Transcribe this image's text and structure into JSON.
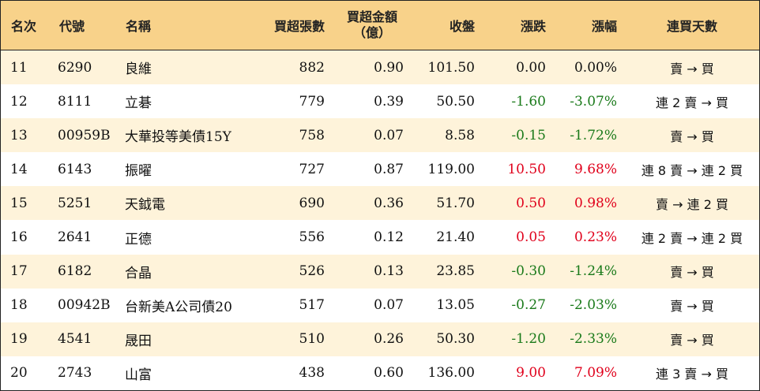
{
  "columns": {
    "rank": "名次",
    "code": "代號",
    "name": "名稱",
    "net_buy_lots": "買超張數",
    "net_buy_amount_line1": "買超金額",
    "net_buy_amount_line2": "（億）",
    "close": "收盤",
    "change": "漲跌",
    "change_pct": "漲幅",
    "streak": "連買天數"
  },
  "colors": {
    "header_bg": "#f8d28a",
    "odd_row_bg": "#fef3da",
    "up": "#e0001b",
    "down": "#1a7a1a"
  },
  "rows": [
    {
      "rank": "11",
      "code": "6290",
      "name": "良維",
      "lots": "882",
      "amount": "0.90",
      "close": "101.50",
      "change": "0.00",
      "pct": "0.00%",
      "streak": "賣 → 買",
      "dir": "flat"
    },
    {
      "rank": "12",
      "code": "8111",
      "name": "立碁",
      "lots": "779",
      "amount": "0.39",
      "close": "50.50",
      "change": "-1.60",
      "pct": "-3.07%",
      "streak": "連 2 賣 → 買",
      "dir": "down"
    },
    {
      "rank": "13",
      "code": "00959B",
      "name": "大華投等美債15Y",
      "lots": "758",
      "amount": "0.07",
      "close": "8.58",
      "change": "-0.15",
      "pct": "-1.72%",
      "streak": "賣 → 買",
      "dir": "down"
    },
    {
      "rank": "14",
      "code": "6143",
      "name": "振曜",
      "lots": "727",
      "amount": "0.87",
      "close": "119.00",
      "change": "10.50",
      "pct": "9.68%",
      "streak": "連 8 賣 → 連 2 買",
      "dir": "up"
    },
    {
      "rank": "15",
      "code": "5251",
      "name": "天鉞電",
      "lots": "690",
      "amount": "0.36",
      "close": "51.70",
      "change": "0.50",
      "pct": "0.98%",
      "streak": "賣 → 連 2 買",
      "dir": "up"
    },
    {
      "rank": "16",
      "code": "2641",
      "name": "正德",
      "lots": "556",
      "amount": "0.12",
      "close": "21.40",
      "change": "0.05",
      "pct": "0.23%",
      "streak": "連 2 賣 → 連 2 買",
      "dir": "up"
    },
    {
      "rank": "17",
      "code": "6182",
      "name": "合晶",
      "lots": "526",
      "amount": "0.13",
      "close": "23.85",
      "change": "-0.30",
      "pct": "-1.24%",
      "streak": "賣 → 買",
      "dir": "down"
    },
    {
      "rank": "18",
      "code": "00942B",
      "name": "台新美A公司債20",
      "lots": "517",
      "amount": "0.07",
      "close": "13.05",
      "change": "-0.27",
      "pct": "-2.03%",
      "streak": "賣 → 買",
      "dir": "down"
    },
    {
      "rank": "19",
      "code": "4541",
      "name": "晟田",
      "lots": "510",
      "amount": "0.26",
      "close": "50.30",
      "change": "-1.20",
      "pct": "-2.33%",
      "streak": "賣 → 買",
      "dir": "down"
    },
    {
      "rank": "20",
      "code": "2743",
      "name": "山富",
      "lots": "438",
      "amount": "0.60",
      "close": "136.00",
      "change": "9.00",
      "pct": "7.09%",
      "streak": "連 3 賣 → 買",
      "dir": "up"
    }
  ]
}
